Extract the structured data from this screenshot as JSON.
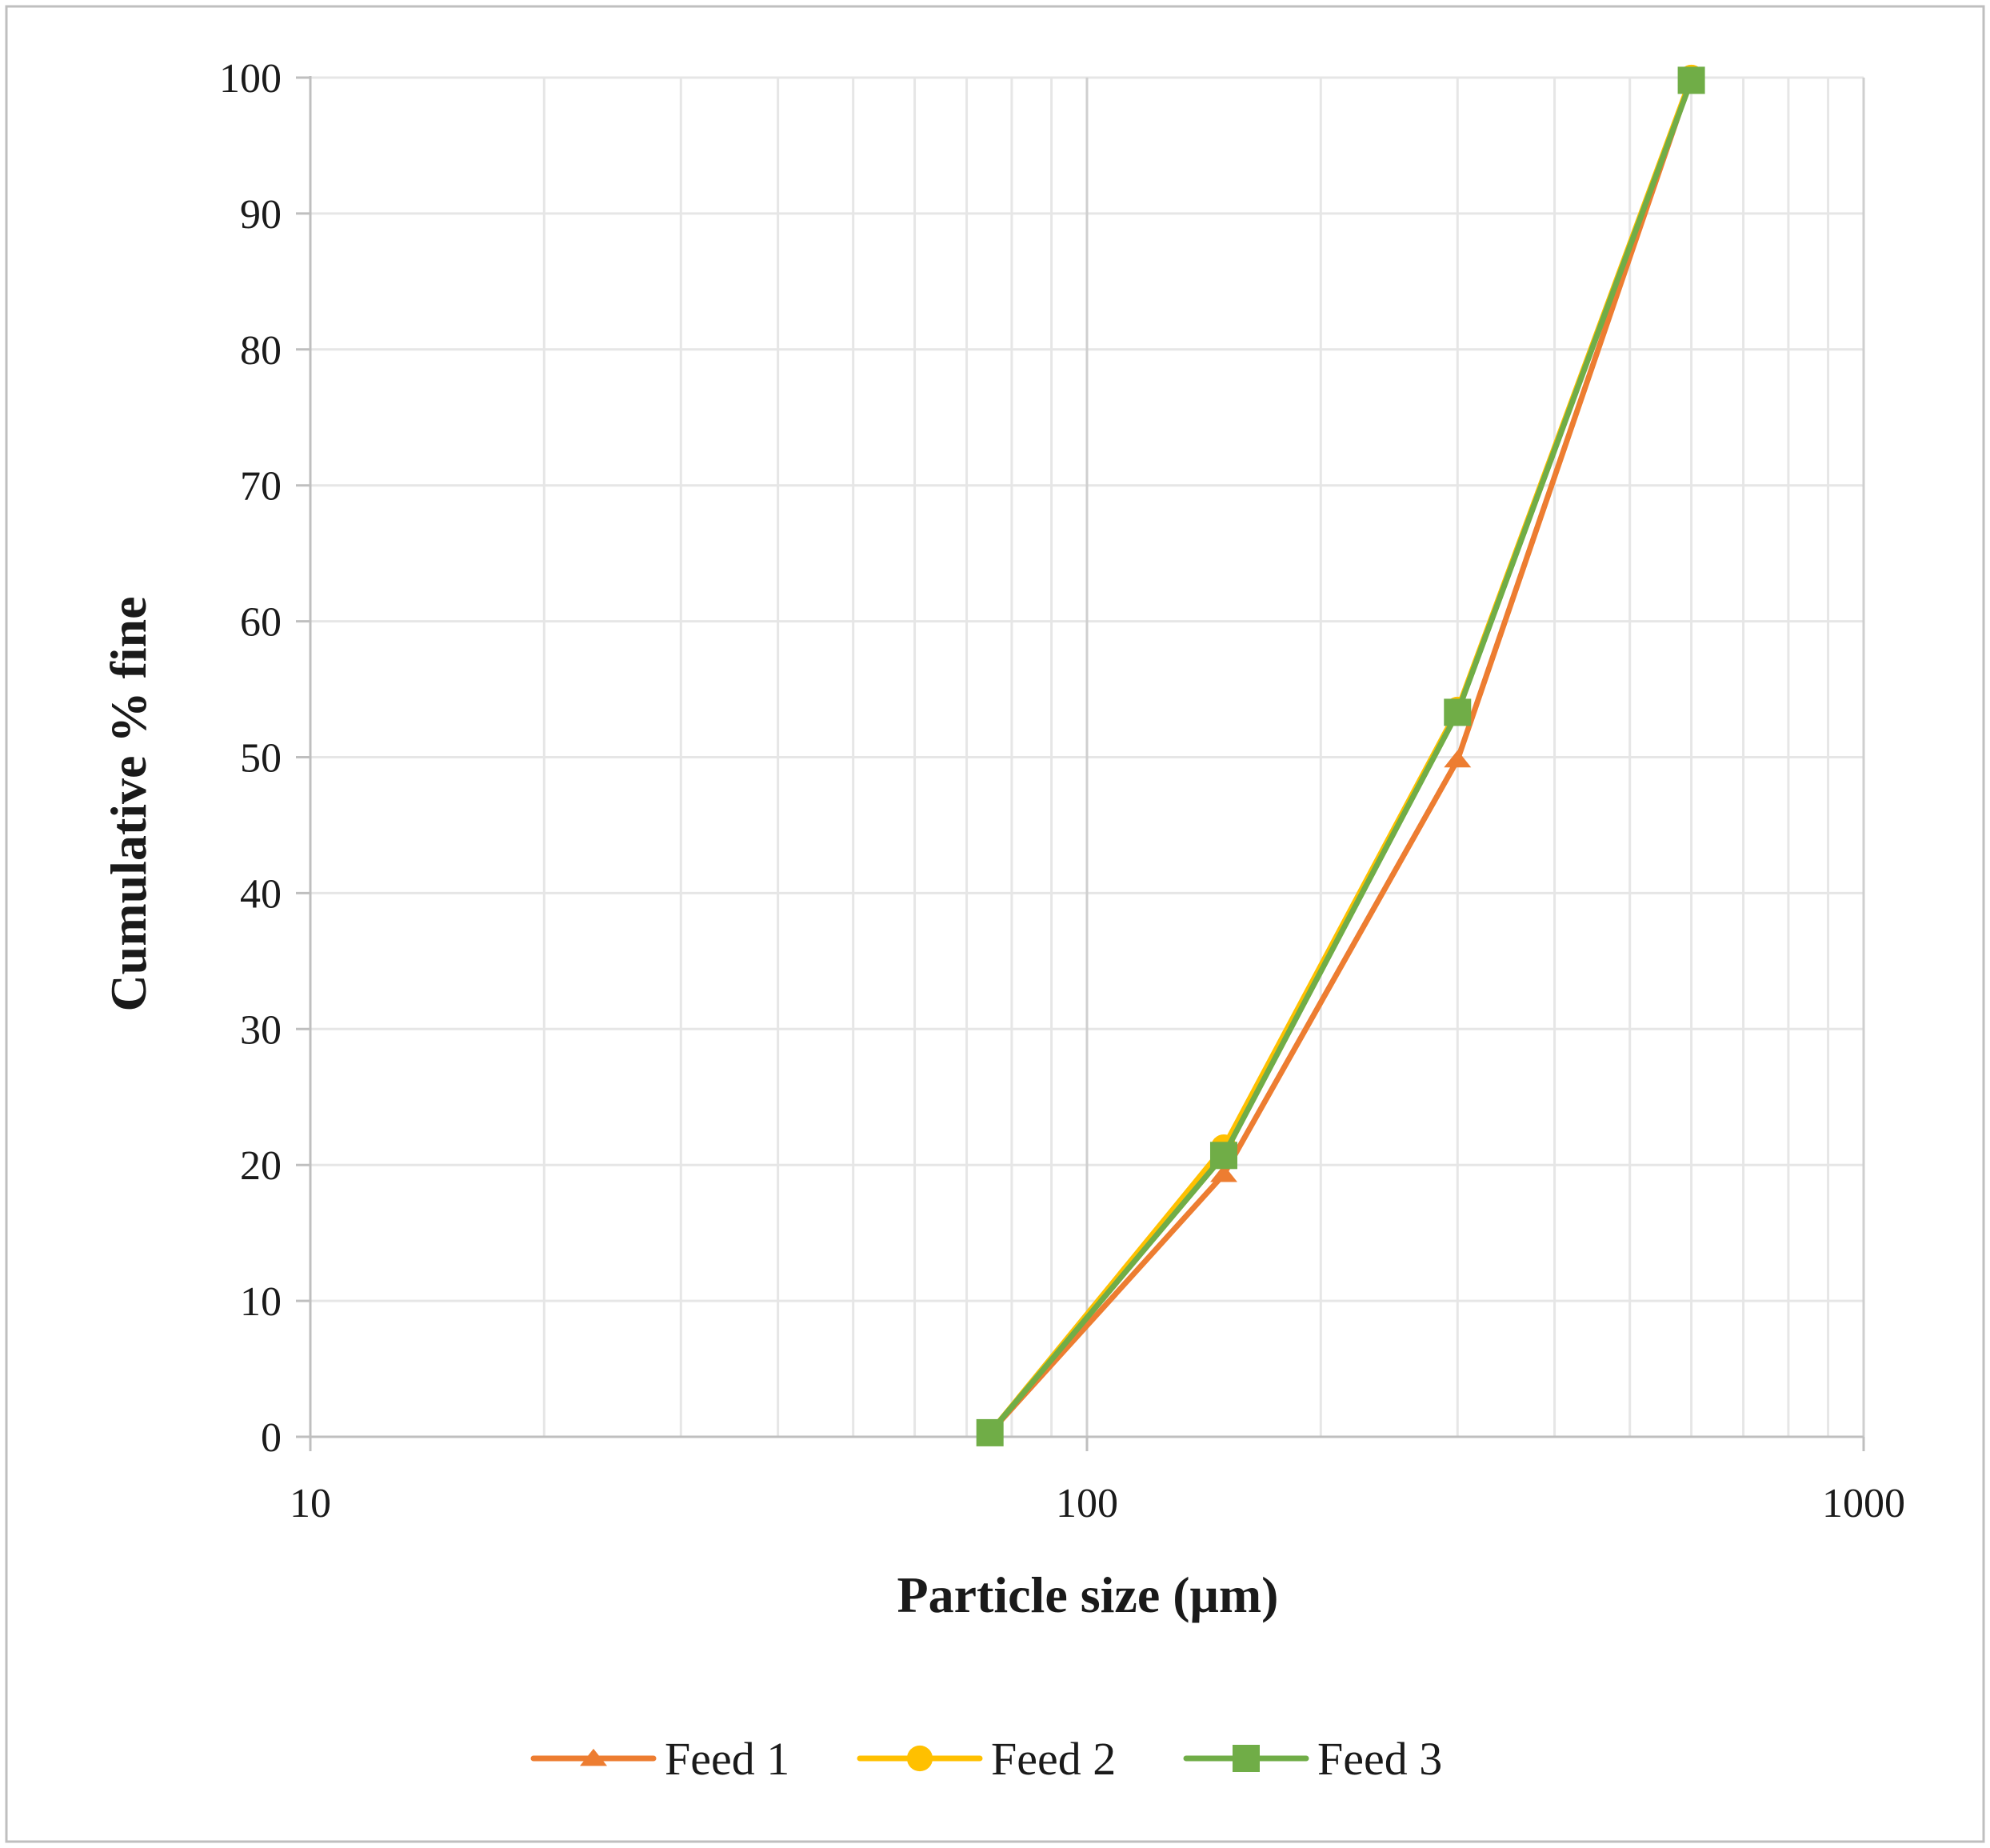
{
  "chart_data": {
    "type": "line",
    "x_scale": "log",
    "xlabel": "Particle size (μm)",
    "ylabel": "Cumulative % fine",
    "xlim": [
      10,
      1000
    ],
    "ylim": [
      0,
      100
    ],
    "x_ticks": [
      "10",
      "100",
      "1000"
    ],
    "y_ticks": [
      "0",
      "10",
      "20",
      "30",
      "40",
      "50",
      "60",
      "70",
      "80",
      "90",
      "100"
    ],
    "grid": true,
    "legend_position": "bottom",
    "x": [
      75,
      150,
      300,
      600
    ],
    "series": [
      {
        "name": "Feed 1",
        "marker": "triangle",
        "color": "#ED7D31",
        "values": [
          0.3,
          19.3,
          49.8,
          100
        ]
      },
      {
        "name": "Feed 2",
        "marker": "circle",
        "color": "#FFC000",
        "values": [
          0.3,
          21.3,
          53.5,
          100
        ]
      },
      {
        "name": "Feed 3",
        "marker": "square",
        "color": "#70AD47",
        "values": [
          0.3,
          20.7,
          53.3,
          99.8
        ]
      }
    ]
  }
}
